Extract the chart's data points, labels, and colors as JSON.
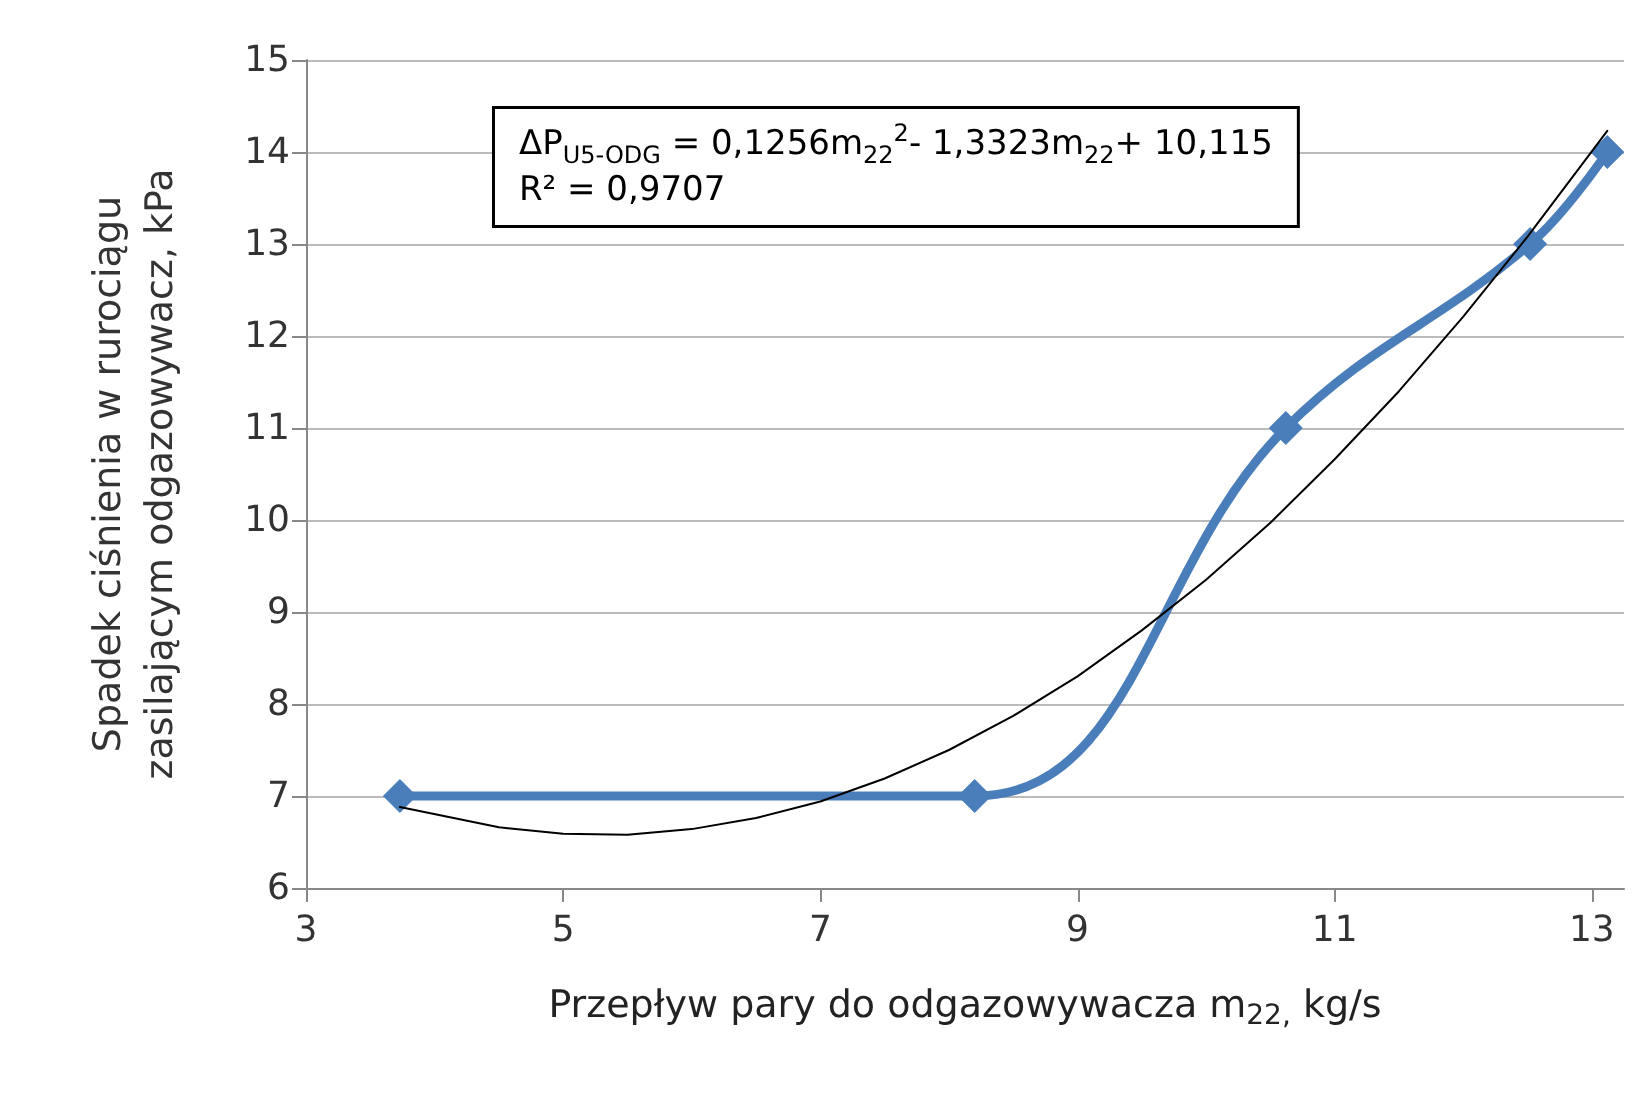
{
  "chart_data": {
    "type": "line",
    "xlabel": "Przepływ pary do odgazowywacza m$_{22,}$ kg/s",
    "ylabel": "Spadek ciśnienia w rurociągu\nzasilającym odgazowywacz, kPa",
    "series": [
      {
        "color": "#4a7ebb",
        "x": [
          3.73,
          8.2,
          10.62,
          12.52,
          13.12
        ],
        "values": [
          7,
          7,
          11,
          13,
          14
        ],
        "marker": "diamond",
        "line_style": "solid"
      },
      {
        "color": "#000000",
        "x": [
          3.73,
          4.5,
          5,
          5.5,
          6,
          6.5,
          7,
          7.5,
          8,
          8.5,
          9,
          9.5,
          10,
          10.5,
          11,
          11.5,
          12,
          12.5,
          13.12
        ],
        "values": [
          6.88,
          6.66,
          6.59,
          6.58,
          6.64,
          6.76,
          6.94,
          7.19,
          7.5,
          7.87,
          8.3,
          8.8,
          9.35,
          9.97,
          10.66,
          11.4,
          12.21,
          13.08,
          14.23
        ],
        "marker": "none",
        "line_style": "solid"
      }
    ],
    "xlim": [
      3,
      13.25
    ],
    "xticks": [
      3,
      5,
      7,
      9,
      11,
      13
    ],
    "ylim": [
      6,
      15
    ],
    "yticks": [
      6,
      7,
      8,
      9,
      10,
      11,
      12,
      13,
      14,
      15
    ],
    "grid": "y",
    "annotations": [
      "ΔP$_{U5-ODG}$ = 0,1256m$_{22}$$^{2}$- 1,3323m$_{22}$+ 10,115\nR² = 0,9707"
    ]
  }
}
